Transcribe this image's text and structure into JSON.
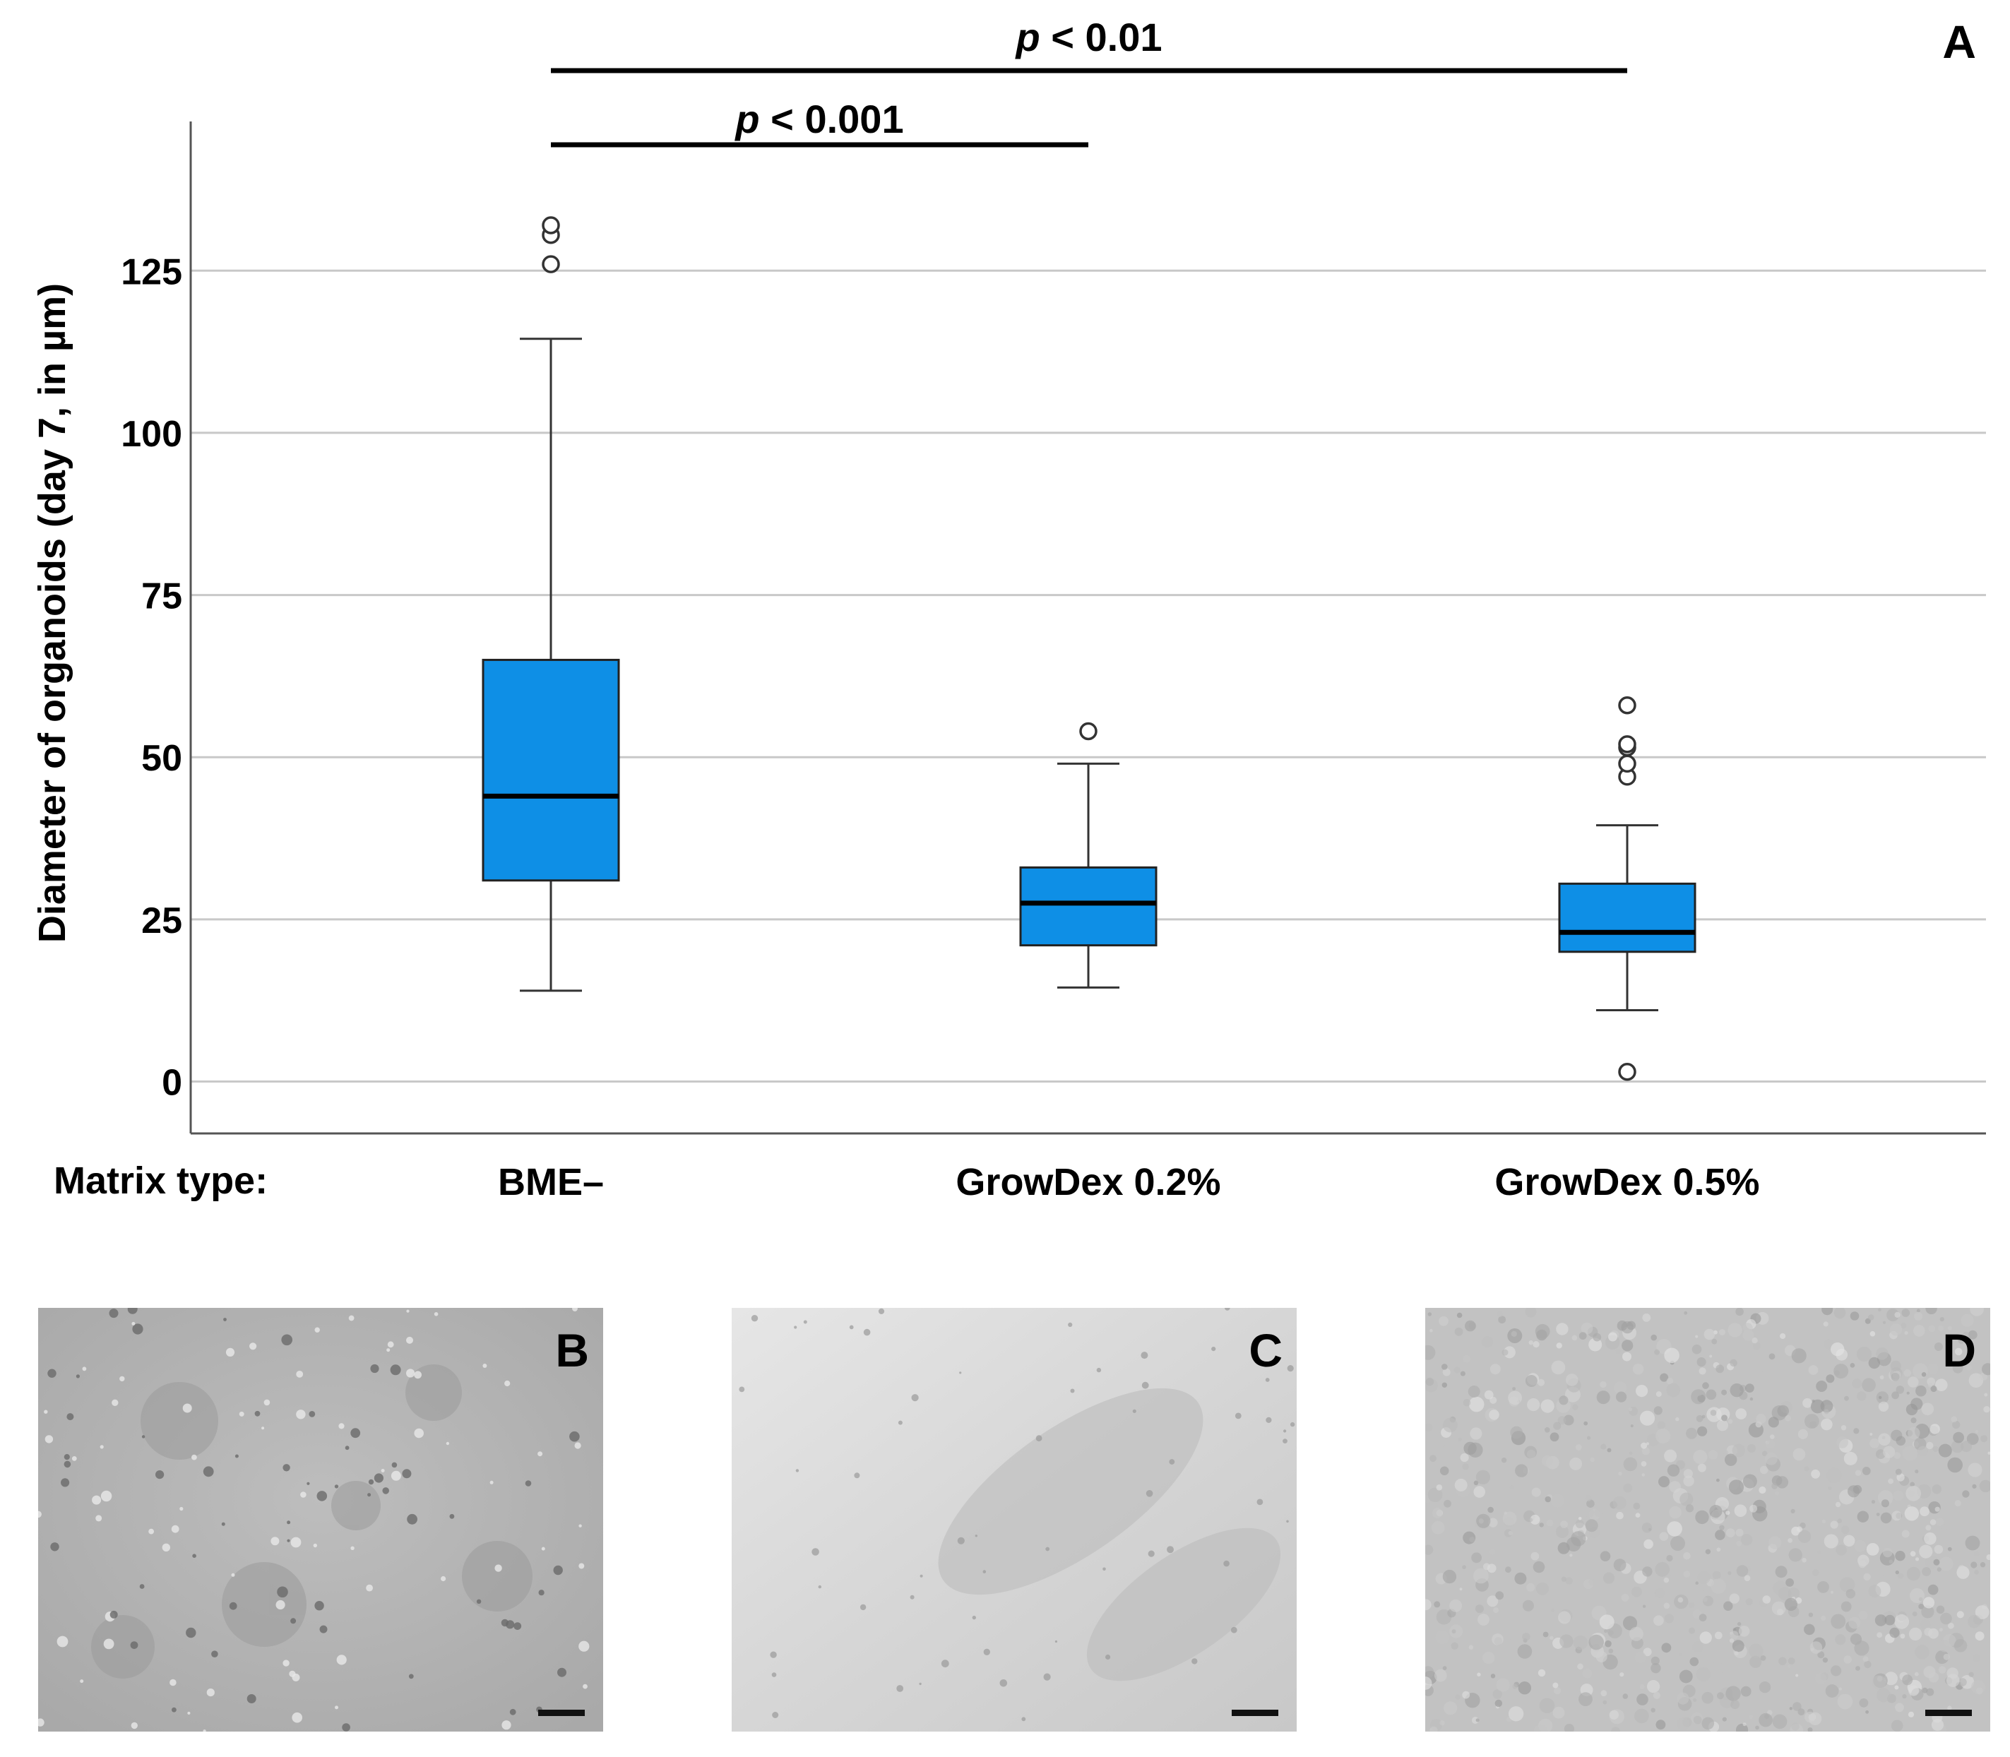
{
  "chart_data": {
    "type": "box",
    "panel_label": "A",
    "ylabel": "Diameter of organoids (day 7, in µm)",
    "xlabel_prefix": "Matrix type:",
    "ylim": [
      -8,
      148
    ],
    "yticks": [
      0,
      25,
      50,
      75,
      100,
      125
    ],
    "grid": true,
    "box_color": "#0e8fe6",
    "median_color": "#000000",
    "categories": [
      "BME–",
      "GrowDex 0.2%",
      "GrowDex 0.5%"
    ],
    "boxes": [
      {
        "name": "BME–",
        "whisker_low": 14,
        "q1": 31,
        "median": 44,
        "q3": 65,
        "whisker_high": 114.5,
        "outliers": [
          126,
          130.5,
          132
        ]
      },
      {
        "name": "GrowDex 0.2%",
        "whisker_low": 14.5,
        "q1": 21,
        "median": 27.5,
        "q3": 33,
        "whisker_high": 49,
        "outliers": [
          54
        ]
      },
      {
        "name": "GrowDex 0.5%",
        "whisker_low": 11,
        "q1": 20,
        "median": 23,
        "q3": 30.5,
        "whisker_high": 39.5,
        "outliers": [
          1.5,
          47,
          49,
          51.5,
          52,
          58
        ]
      }
    ],
    "significance": [
      {
        "from": 0,
        "to": 1,
        "label_italic": "p",
        "label_rest": " < 0.001"
      },
      {
        "from": 0,
        "to": 2,
        "label_italic": "p",
        "label_rest": " < 0.01"
      }
    ]
  },
  "images": [
    {
      "label": "B",
      "description": "BME– micrograph"
    },
    {
      "label": "C",
      "description": "GrowDex 0.2% micrograph"
    },
    {
      "label": "D",
      "description": "GrowDex 0.5% micrograph"
    }
  ]
}
